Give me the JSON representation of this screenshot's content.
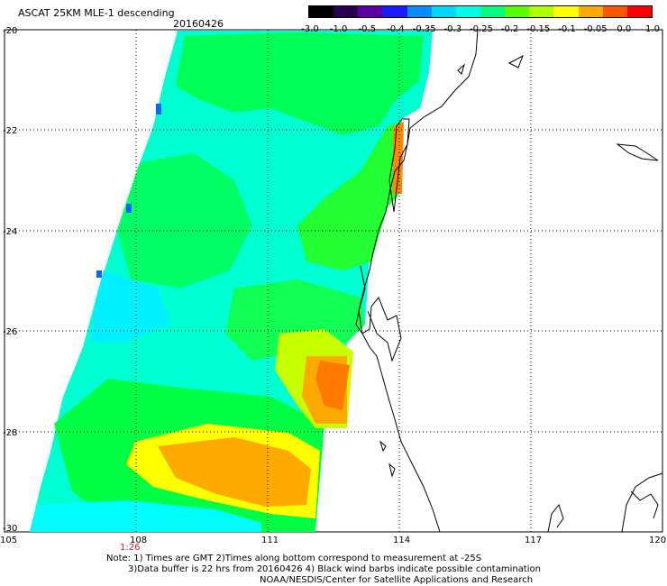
{
  "header": {
    "title": "ASCAT 25KM MLE-1 descending",
    "date": "20160426"
  },
  "colorbar": {
    "labels": [
      "-3.0",
      "-1.0",
      "-0.5",
      "-0.4",
      "-0.35",
      "-0.3",
      "-0.25",
      "-0.2",
      "-0.15",
      "-0.1",
      "-0.05",
      "0.0",
      "1.0"
    ],
    "colors": [
      "#000000",
      "#2a0050",
      "#5a00a0",
      "#1a1aff",
      "#0a8cff",
      "#00d8ff",
      "#00ffe8",
      "#00ff7f",
      "#55ff00",
      "#b0ff00",
      "#ffff00",
      "#ffaa00",
      "#ff5500",
      "#ff0000"
    ]
  },
  "map": {
    "lon_range": [
      105,
      120
    ],
    "lat_range": [
      -20,
      -30
    ],
    "lon_ticks": [
      "105",
      "108",
      "111",
      "114",
      "117",
      "120"
    ],
    "lat_ticks": [
      "-20",
      "-22",
      "-24",
      "-26",
      "-28",
      "-30"
    ],
    "time_label": "1:26",
    "colors": {
      "green": "#00ff55",
      "teal": "#00ffd0",
      "cyan": "#00ffff",
      "yellow": "#ffff00",
      "orange": "#ffaa00",
      "dark_orange": "#ff7a00",
      "blue": "#0a64ff"
    }
  },
  "notes": {
    "line1": "Note: 1) Times are GMT 2)Times along bottom correspond to measurement at -25S",
    "line2": "3)Data buffer is 22 hrs from 20160426 4) Black wind barbs indicate possible contamination",
    "line3": "NOAA/NESDIS/Center for Satellite Applications and Research"
  }
}
